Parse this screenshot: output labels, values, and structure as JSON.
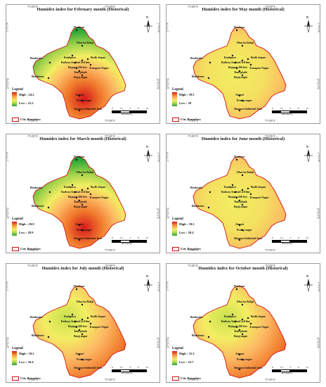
{
  "coords": {
    "lon_left": "75°40'0\"E",
    "lon_right": "75°50'0\"E",
    "lat_top": "27°0'0\"N",
    "lat_bottom": "26°50'0\"N"
  },
  "legend_title": "Legend",
  "boundary_label": "City Boundary",
  "north_label": "N",
  "scale": {
    "ticks": [
      "0",
      "1.5",
      "3",
      "6",
      "12"
    ],
    "unit": "Kilometers"
  },
  "places": [
    "Harmara",
    "Dhar ka Balaji",
    "Bindayaka",
    "Kanhpura",
    "Budh chopar",
    "Railway Station",
    "Civil line",
    "Transport Nagar",
    "Bajapar 200 feet",
    "Tonk phatk",
    "Bajaj nagar",
    "Bhankrota",
    "Airport",
    "Pratap nagar",
    "Sitapura Industrial Area"
  ],
  "panels": [
    {
      "title": "Humidex index for February month (Historical)",
      "high": "High : 24.2",
      "low": "Low : 23.2",
      "hot": "south"
    },
    {
      "title": "Humidex index for May month (Historical)",
      "high": "High : 39.5",
      "low": "Low : 38",
      "hot": "even"
    },
    {
      "title": "Humidex index for March month (Historical)",
      "high": "High : 29.9",
      "low": "Low : 28.9",
      "hot": "south"
    },
    {
      "title": "Humidex index for June month (Historical)",
      "high": "High : 39.5",
      "low": "Low : 38.4",
      "hot": "even"
    },
    {
      "title": "Humidex index for July month (Historical)",
      "high": "High : 39.3",
      "low": "Low : 36.4",
      "hot": "east"
    },
    {
      "title": "Humidex index for October month (Historical)",
      "high": "High : 35.3",
      "low": "Low : 32.7",
      "hot": "east"
    }
  ]
}
